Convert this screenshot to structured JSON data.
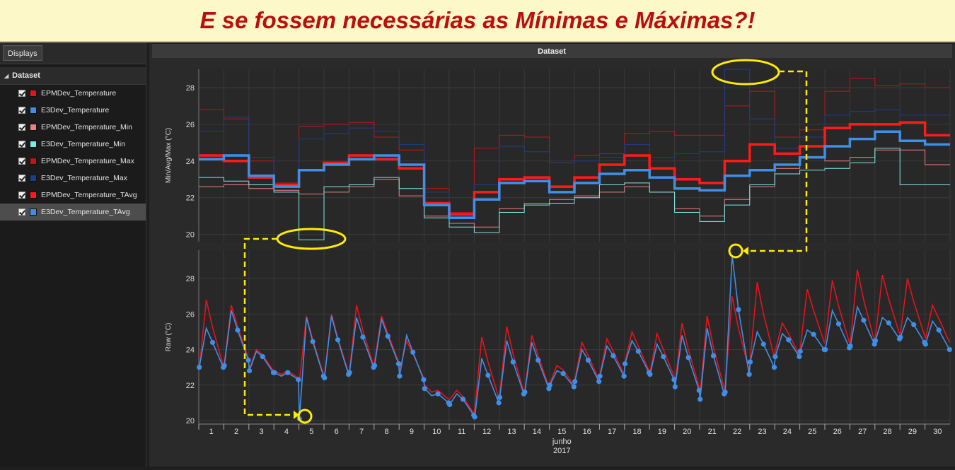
{
  "banner": {
    "title": "E se fossem necessárias as Mínimas e Máximas?!"
  },
  "sidebar": {
    "displays_label": "Displays",
    "dataset_label": "Dataset",
    "items": [
      {
        "label": "EPMDev_Temperature",
        "color": "#e8121b",
        "checked": true
      },
      {
        "label": "E3Dev_Temperature",
        "color": "#3f8fe8",
        "checked": true
      },
      {
        "label": "EPMDev_Temperature_Min",
        "color": "#f08080",
        "checked": true
      },
      {
        "label": "E3Dev_Temperature_Min",
        "color": "#7fe8e8",
        "checked": true
      },
      {
        "label": "EPMDev_Temperature_Max",
        "color": "#c0141b",
        "checked": true
      },
      {
        "label": "E3Dev_Temperature_Max",
        "color": "#1c3f8c",
        "checked": true
      },
      {
        "label": "EPMDev_Temperature_TAvg",
        "color": "#ff1a1a",
        "checked": true
      },
      {
        "label": "E3Dev_Temperature_TAvg",
        "color": "#3f8fe8",
        "checked": true,
        "selected": true
      }
    ]
  },
  "chart_data": {
    "type": "line",
    "title": "Dataset",
    "xlabel": "junho",
    "xsub": "2017",
    "x": [
      1,
      2,
      3,
      4,
      5,
      6,
      7,
      8,
      9,
      10,
      11,
      12,
      13,
      14,
      15,
      16,
      17,
      18,
      19,
      20,
      21,
      22,
      23,
      24,
      25,
      26,
      27,
      28,
      29,
      30
    ],
    "panels": [
      {
        "ylabel": "Min/Avg/Max (°C)",
        "ylim": [
          19.6,
          29.0
        ],
        "yticks": [
          20,
          22,
          24,
          26,
          28
        ],
        "series": [
          {
            "name": "EPMDev_Temperature_Max",
            "color": "#c0141b",
            "width": 1,
            "values": [
              26.8,
              26.3,
              24.0,
              22.8,
              25.9,
              26.0,
              26.1,
              25.3,
              24.6,
              22.5,
              21.2,
              24.7,
              25.4,
              25.3,
              23.9,
              24.3,
              24.4,
              25.5,
              25.6,
              25.4,
              25.4,
              27.0,
              27.8,
              25.3,
              25.7,
              27.8,
              28.5,
              28.1,
              28.2,
              28.0
            ]
          },
          {
            "name": "E3Dev_Temperature_Max",
            "color": "#1c3f8c",
            "width": 1,
            "values": [
              25.6,
              26.4,
              24.2,
              22.4,
              25.2,
              25.5,
              25.8,
              25.6,
              24.9,
              22.3,
              21.0,
              22.7,
              24.8,
              24.5,
              23.9,
              24.0,
              24.2,
              24.9,
              24.2,
              24.4,
              24.5,
              29.0,
              26.3,
              24.7,
              25.3,
              26.5,
              26.7,
              26.8,
              26.5,
              26.5
            ]
          },
          {
            "name": "EPMDev_Temperature_Min",
            "color": "#f08080",
            "width": 1,
            "values": [
              22.6,
              22.7,
              22.5,
              22.4,
              22.2,
              22.3,
              22.6,
              23.0,
              22.1,
              21.0,
              20.6,
              20.4,
              21.4,
              21.7,
              21.9,
              22.1,
              22.3,
              22.6,
              22.3,
              21.4,
              21.0,
              21.9,
              22.6,
              23.6,
              24.2,
              24.0,
              24.2,
              24.6,
              24.6,
              23.8
            ]
          },
          {
            "name": "E3Dev_Temperature_Min",
            "color": "#7fe8e8",
            "width": 1,
            "values": [
              23.1,
              22.9,
              22.7,
              22.3,
              19.7,
              22.6,
              22.7,
              23.1,
              22.5,
              20.9,
              20.4,
              20.1,
              21.2,
              21.6,
              21.7,
              22.0,
              22.7,
              22.8,
              22.3,
              21.2,
              20.7,
              21.6,
              22.7,
              23.3,
              23.5,
              23.6,
              23.9,
              24.7,
              22.7,
              22.7
            ]
          },
          {
            "name": "EPMDev_Temperature_TAvg",
            "color": "#ff1a1a",
            "width": 3.5,
            "values": [
              24.3,
              24.0,
              23.1,
              22.7,
              23.5,
              23.9,
              24.3,
              24.1,
              23.6,
              21.7,
              21.1,
              22.3,
              23.0,
              23.1,
              22.6,
              23.1,
              23.8,
              24.3,
              23.6,
              23.0,
              22.8,
              24.0,
              24.9,
              24.4,
              24.8,
              25.8,
              26.0,
              26.0,
              26.1,
              25.4
            ]
          },
          {
            "name": "E3Dev_Temperature_TAvg",
            "color": "#3f8fe8",
            "width": 3.5,
            "values": [
              24.1,
              24.3,
              23.2,
              22.6,
              23.5,
              23.8,
              24.1,
              24.3,
              23.8,
              21.6,
              20.9,
              21.9,
              22.8,
              22.9,
              22.3,
              22.8,
              23.3,
              23.5,
              23.1,
              22.5,
              22.4,
              23.2,
              23.5,
              23.8,
              24.2,
              24.8,
              25.2,
              25.6,
              25.1,
              24.9
            ]
          }
        ]
      },
      {
        "ylabel": "Raw (°C)",
        "ylim": [
          19.8,
          29.6
        ],
        "yticks": [
          20,
          22,
          24,
          26,
          28
        ],
        "series": [
          {
            "name": "EPMDev_Temperature",
            "color": "#e8121b",
            "width": 1.6,
            "daily": [
              [
                22.9,
                26.8,
                23.1
              ],
              [
                23.2,
                26.5,
                23.5
              ],
              [
                22.9,
                24.0,
                22.8
              ],
              [
                22.8,
                22.6,
                22.4
              ],
              [
                22.2,
                25.9,
                22.6
              ],
              [
                22.5,
                26.0,
                22.7
              ],
              [
                22.8,
                26.5,
                23.1
              ],
              [
                23.3,
                25.9,
                23.3
              ],
              [
                22.8,
                24.5,
                22.4
              ],
              [
                22.0,
                21.6,
                21.2
              ],
              [
                21.2,
                21.7,
                20.4
              ],
              [
                20.6,
                24.7,
                21.3
              ],
              [
                21.5,
                25.3,
                21.6
              ],
              [
                21.7,
                24.8,
                21.9
              ],
              [
                22.1,
                23.1,
                22.0
              ],
              [
                22.3,
                24.4,
                22.3
              ],
              [
                22.6,
                24.6,
                22.6
              ],
              [
                23.3,
                25.0,
                22.8
              ],
              [
                22.7,
                24.9,
                22.5
              ],
              [
                22.1,
                25.5,
                21.9
              ],
              [
                21.5,
                25.9,
                21.8
              ],
              [
                21.8,
                27.0,
                22.8
              ],
              [
                23.4,
                27.8,
                23.6
              ],
              [
                23.9,
                25.5,
                23.7
              ],
              [
                24.1,
                27.4,
                24.4
              ],
              [
                24.5,
                27.9,
                24.4
              ],
              [
                24.4,
                28.5,
                24.5
              ],
              [
                24.7,
                28.2,
                24.9
              ],
              [
                24.9,
                28.0,
                24.8
              ],
              [
                24.6,
                26.5,
                24.4
              ]
            ]
          },
          {
            "name": "E3Dev_Temperature",
            "color": "#3f8fe8",
            "width": 1.6,
            "markers": true,
            "daily": [
              [
                23.0,
                25.2,
                23.0
              ],
              [
                23.1,
                26.2,
                23.4
              ],
              [
                22.8,
                23.9,
                22.7
              ],
              [
                22.7,
                22.5,
                22.3
              ],
              [
                20.1,
                25.8,
                22.5
              ],
              [
                22.4,
                25.9,
                22.6
              ],
              [
                22.7,
                25.8,
                23.0
              ],
              [
                23.1,
                25.7,
                23.2
              ],
              [
                22.5,
                24.8,
                22.3
              ],
              [
                21.8,
                21.4,
                21.0
              ],
              [
                20.9,
                21.5,
                20.3
              ],
              [
                20.2,
                23.5,
                21.0
              ],
              [
                21.3,
                24.5,
                21.5
              ],
              [
                21.6,
                24.4,
                21.8
              ],
              [
                22.0,
                22.8,
                21.9
              ],
              [
                22.2,
                24.0,
                22.2
              ],
              [
                22.5,
                24.2,
                22.5
              ],
              [
                23.2,
                24.5,
                22.7
              ],
              [
                22.6,
                24.3,
                22.3
              ],
              [
                21.9,
                24.8,
                21.7
              ],
              [
                21.2,
                25.2,
                21.5
              ],
              [
                21.6,
                29.3,
                22.6
              ],
              [
                23.3,
                25.0,
                23.0
              ],
              [
                23.6,
                24.9,
                23.6
              ],
              [
                23.9,
                25.1,
                24.0
              ],
              [
                24.0,
                26.2,
                24.1
              ],
              [
                24.2,
                26.4,
                24.3
              ],
              [
                24.5,
                25.8,
                24.6
              ],
              [
                24.7,
                25.8,
                24.4
              ],
              [
                24.3,
                25.6,
                24.0
              ]
            ]
          }
        ]
      }
    ]
  }
}
